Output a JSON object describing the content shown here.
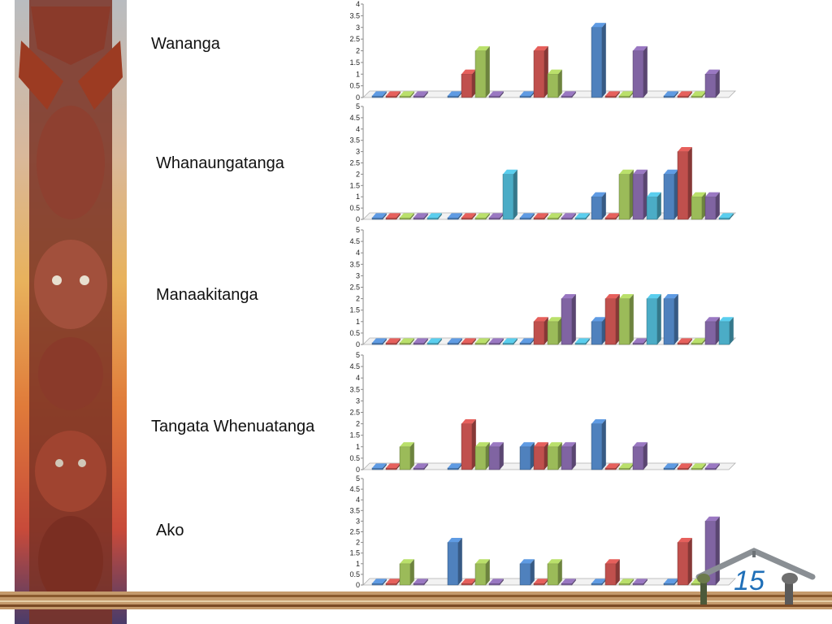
{
  "slide": {
    "page_number": "15"
  },
  "colors": {
    "series": [
      "#4f81bd",
      "#c0504d",
      "#9bbb59",
      "#8064a2",
      "#4bacc6"
    ],
    "carving_wood": "#8a3a2a",
    "carving_light": "#b5634c",
    "band": "#c49a6c"
  },
  "icons": {
    "side_panel": "maori-carving-image",
    "logo": "wharenui-roof-logo"
  },
  "chart_data": [
    {
      "type": "bar",
      "title": "Wananga",
      "categories": [
        "",
        "",
        "",
        "",
        ""
      ],
      "series": [
        {
          "values": [
            0,
            0,
            0,
            3,
            0
          ]
        },
        {
          "values": [
            0,
            1,
            2,
            0,
            0
          ]
        },
        {
          "values": [
            0,
            2,
            1,
            0,
            0
          ]
        },
        {
          "values": [
            0,
            0,
            0,
            2,
            1
          ]
        }
      ],
      "ylim": [
        0,
        4
      ],
      "yticks": [
        "0",
        "0.5",
        "1",
        "1.5",
        "2",
        "2.5",
        "3",
        "3.5",
        "4"
      ]
    },
    {
      "type": "bar",
      "title": "Whanaungatanga",
      "categories": [
        "",
        "",
        "",
        "",
        ""
      ],
      "series": [
        {
          "values": [
            0,
            0,
            0,
            1,
            2
          ]
        },
        {
          "values": [
            0,
            0,
            0,
            0,
            3
          ]
        },
        {
          "values": [
            0,
            0,
            0,
            2,
            1
          ]
        },
        {
          "values": [
            0,
            0,
            0,
            2,
            1
          ]
        },
        {
          "values": [
            0,
            2,
            0,
            1,
            0
          ]
        }
      ],
      "ylim": [
        0,
        5
      ],
      "yticks": [
        "0",
        "0.5",
        "1",
        "1.5",
        "2",
        "2.5",
        "3",
        "3.5",
        "4",
        "4.5",
        "5"
      ]
    },
    {
      "type": "bar",
      "title": "Manaakitanga",
      "categories": [
        "",
        "",
        "",
        "",
        ""
      ],
      "series": [
        {
          "values": [
            0,
            0,
            0,
            1,
            2
          ]
        },
        {
          "values": [
            0,
            0,
            1,
            2,
            0
          ]
        },
        {
          "values": [
            0,
            0,
            1,
            2,
            0
          ]
        },
        {
          "values": [
            0,
            0,
            2,
            0,
            1
          ]
        },
        {
          "values": [
            0,
            0,
            0,
            2,
            1
          ]
        }
      ],
      "ylim": [
        0,
        5
      ],
      "yticks": [
        "0",
        "0.5",
        "1",
        "1.5",
        "2",
        "2.5",
        "3",
        "3.5",
        "4",
        "4.5",
        "5"
      ]
    },
    {
      "type": "bar",
      "title": "Tangata Whenuatanga",
      "categories": [
        "",
        "",
        "",
        "",
        ""
      ],
      "series": [
        {
          "values": [
            0,
            0,
            1,
            2,
            0
          ]
        },
        {
          "values": [
            0,
            2,
            1,
            0,
            0
          ]
        },
        {
          "values": [
            1,
            1,
            1,
            0,
            0
          ]
        },
        {
          "values": [
            0,
            1,
            1,
            1,
            0
          ]
        }
      ],
      "ylim": [
        0,
        5
      ],
      "yticks": [
        "0",
        "0.5",
        "1",
        "1.5",
        "2",
        "2.5",
        "3",
        "3.5",
        "4",
        "4.5",
        "5"
      ]
    },
    {
      "type": "bar",
      "title": "Ako",
      "categories": [
        "",
        "",
        "",
        "",
        ""
      ],
      "series": [
        {
          "values": [
            0,
            2,
            1,
            0,
            0
          ]
        },
        {
          "values": [
            0,
            0,
            0,
            1,
            2
          ]
        },
        {
          "values": [
            1,
            1,
            1,
            0,
            0
          ]
        },
        {
          "values": [
            0,
            0,
            0,
            0,
            3
          ]
        }
      ],
      "ylim": [
        0,
        5
      ],
      "yticks": [
        "0",
        "0.5",
        "1",
        "1.5",
        "2",
        "2.5",
        "3",
        "3.5",
        "4",
        "4.5",
        "5"
      ]
    }
  ]
}
